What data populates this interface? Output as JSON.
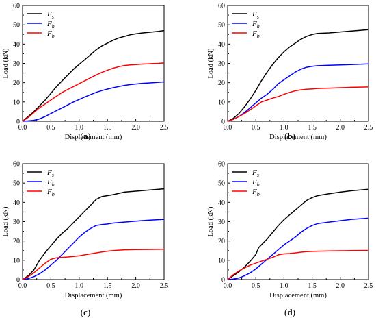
{
  "chart_data": [
    {
      "type": "line",
      "panel_label": "(a)",
      "xlabel": "Displacement (mm)",
      "ylabel": "Load (kN)",
      "xlim": [
        0,
        2.5
      ],
      "ylim": [
        0,
        60
      ],
      "xticks": [
        "0.0",
        "0.5",
        "1.0",
        "1.5",
        "2.0",
        "2.5"
      ],
      "yticks": [
        "0",
        "10",
        "20",
        "30",
        "40",
        "50",
        "60"
      ],
      "legend_position": "top-left",
      "series": [
        {
          "name": "Fs",
          "name_main": "F",
          "name_sub": "s",
          "color": "#000000",
          "x": [
            0,
            0.1,
            0.2,
            0.3,
            0.4,
            0.5,
            0.6,
            0.7,
            0.8,
            0.9,
            1.0,
            1.1,
            1.2,
            1.3,
            1.4,
            1.5,
            1.6,
            1.7,
            1.8,
            1.9,
            2.0,
            2.1,
            2.2,
            2.3,
            2.4,
            2.5
          ],
          "y": [
            0,
            2.5,
            5,
            8,
            11,
            14.5,
            18,
            21,
            24,
            27,
            29.5,
            32,
            34.5,
            37,
            39,
            40.5,
            42,
            43.2,
            44,
            44.8,
            45.3,
            45.7,
            46,
            46.3,
            46.6,
            47
          ]
        },
        {
          "name": "Fh",
          "name_main": "F",
          "name_sub": "h",
          "color": "#0000FF",
          "x": [
            0,
            0.1,
            0.2,
            0.3,
            0.4,
            0.5,
            0.6,
            0.7,
            0.8,
            0.9,
            1.0,
            1.1,
            1.2,
            1.3,
            1.4,
            1.5,
            1.6,
            1.7,
            1.8,
            1.9,
            2.0,
            2.1,
            2.2,
            2.3,
            2.4,
            2.5
          ],
          "y": [
            0,
            0.2,
            0.5,
            1.2,
            2.5,
            4,
            5.5,
            7,
            8.5,
            10,
            11.3,
            12.6,
            13.8,
            15,
            15.9,
            16.7,
            17.4,
            18,
            18.6,
            19,
            19.3,
            19.6,
            19.8,
            20,
            20.2,
            20.4
          ]
        },
        {
          "name": "Fb",
          "name_main": "F",
          "name_sub": "b",
          "color": "#FF0000",
          "x": [
            0,
            0.1,
            0.2,
            0.3,
            0.4,
            0.5,
            0.6,
            0.7,
            0.8,
            0.9,
            1.0,
            1.1,
            1.2,
            1.3,
            1.4,
            1.5,
            1.6,
            1.7,
            1.8,
            1.9,
            2.0,
            2.1,
            2.2,
            2.3,
            2.4,
            2.5
          ],
          "y": [
            0,
            2,
            4.5,
            7,
            9,
            11,
            13,
            15,
            16.5,
            18,
            19.5,
            21,
            22.5,
            24,
            25.3,
            26.5,
            27.5,
            28.3,
            28.9,
            29.2,
            29.4,
            29.6,
            29.7,
            29.9,
            30,
            30.2
          ]
        }
      ]
    },
    {
      "type": "line",
      "panel_label": "(b)",
      "xlabel": "Displacement (mm)",
      "ylabel": "Load (kN)",
      "xlim": [
        0,
        2.5
      ],
      "ylim": [
        0,
        60
      ],
      "xticks": [
        "0.0",
        "0.5",
        "1.0",
        "1.5",
        "2.0",
        "2.5"
      ],
      "yticks": [
        "0",
        "10",
        "20",
        "30",
        "40",
        "50",
        "60"
      ],
      "legend_position": "top-left",
      "series": [
        {
          "name": "Fs",
          "name_main": "F",
          "name_sub": "s",
          "color": "#000000",
          "x": [
            0,
            0.1,
            0.2,
            0.3,
            0.4,
            0.5,
            0.6,
            0.7,
            0.8,
            0.9,
            1.0,
            1.1,
            1.2,
            1.3,
            1.4,
            1.5,
            1.6,
            1.8,
            2.0,
            2.2,
            2.5
          ],
          "y": [
            0,
            1.5,
            4,
            7.5,
            11.5,
            16,
            21,
            25.5,
            29.5,
            33,
            36,
            38.5,
            40.5,
            42.5,
            44,
            45,
            45.5,
            45.8,
            46.3,
            46.8,
            47.5
          ]
        },
        {
          "name": "Fh",
          "name_main": "F",
          "name_sub": "h",
          "color": "#0000FF",
          "x": [
            0,
            0.1,
            0.2,
            0.3,
            0.4,
            0.5,
            0.6,
            0.7,
            0.8,
            0.9,
            1.0,
            1.1,
            1.2,
            1.3,
            1.4,
            1.5,
            1.6,
            1.8,
            2.0,
            2.2,
            2.5
          ],
          "y": [
            0,
            1,
            2.5,
            4.5,
            7,
            9.5,
            12,
            14,
            16.5,
            19.5,
            21.5,
            23.5,
            25.5,
            27,
            28,
            28.5,
            28.8,
            29,
            29.2,
            29.4,
            29.7
          ]
        },
        {
          "name": "Fb",
          "name_main": "F",
          "name_sub": "b",
          "color": "#FF0000",
          "x": [
            0,
            0.1,
            0.2,
            0.3,
            0.4,
            0.5,
            0.6,
            0.7,
            0.8,
            0.9,
            1.0,
            1.1,
            1.2,
            1.3,
            1.4,
            1.5,
            1.6,
            1.8,
            2.0,
            2.2,
            2.5
          ],
          "y": [
            0,
            1,
            2.5,
            4,
            6,
            8,
            10,
            11,
            12,
            12.8,
            14,
            15,
            15.8,
            16.3,
            16.6,
            16.8,
            17,
            17.2,
            17.4,
            17.6,
            17.8
          ]
        }
      ]
    },
    {
      "type": "line",
      "panel_label": "(c)",
      "xlabel": "Displacement (mm)",
      "ylabel": "Load (kN)",
      "xlim": [
        0,
        2.5
      ],
      "ylim": [
        0,
        60
      ],
      "xticks": [
        "0.0",
        "0.5",
        "1.0",
        "1.5",
        "2.0",
        "2.5"
      ],
      "yticks": [
        "0",
        "10",
        "20",
        "30",
        "40",
        "50",
        "60"
      ],
      "legend_position": "top-left",
      "series": [
        {
          "name": "Fs",
          "name_main": "F",
          "name_sub": "s",
          "color": "#000000",
          "x": [
            0,
            0.1,
            0.2,
            0.3,
            0.4,
            0.5,
            0.6,
            0.7,
            0.8,
            0.9,
            1.0,
            1.1,
            1.2,
            1.3,
            1.4,
            1.5,
            1.6,
            1.8,
            2.0,
            2.2,
            2.5
          ],
          "y": [
            0,
            2,
            5,
            10,
            14,
            17.5,
            21,
            24,
            26.5,
            29.5,
            32.5,
            35.5,
            38.5,
            41.5,
            43,
            43.5,
            44,
            45.3,
            45.8,
            46.3,
            47
          ]
        },
        {
          "name": "Fh",
          "name_main": "F",
          "name_sub": "h",
          "color": "#0000FF",
          "x": [
            0,
            0.1,
            0.2,
            0.3,
            0.4,
            0.5,
            0.6,
            0.7,
            0.8,
            0.9,
            1.0,
            1.1,
            1.2,
            1.3,
            1.4,
            1.5,
            1.6,
            1.8,
            2.0,
            2.2,
            2.5
          ],
          "y": [
            0,
            0.5,
            1.5,
            3,
            5,
            7.5,
            10,
            13,
            16,
            19,
            22,
            24.5,
            26.5,
            28,
            28.5,
            28.8,
            29.3,
            29.8,
            30.3,
            30.7,
            31.2
          ]
        },
        {
          "name": "Fb",
          "name_main": "F",
          "name_sub": "b",
          "color": "#FF0000",
          "x": [
            0,
            0.1,
            0.2,
            0.3,
            0.4,
            0.5,
            0.6,
            0.7,
            0.8,
            0.9,
            1.0,
            1.1,
            1.2,
            1.3,
            1.4,
            1.5,
            1.6,
            1.8,
            2.0,
            2.2,
            2.5
          ],
          "y": [
            0,
            1.5,
            3.5,
            6,
            8.5,
            10.5,
            11.3,
            11.5,
            11.7,
            12,
            12.3,
            12.8,
            13.3,
            13.8,
            14.3,
            14.7,
            15,
            15.4,
            15.5,
            15.6,
            15.7
          ]
        }
      ]
    },
    {
      "type": "line",
      "panel_label": "(d)",
      "xlabel": "Displacement (mm)",
      "ylabel": "Load (kN)",
      "xlim": [
        0,
        2.5
      ],
      "ylim": [
        0,
        60
      ],
      "xticks": [
        "0.0",
        "0.5",
        "1.0",
        "1.5",
        "2.0",
        "2.5"
      ],
      "yticks": [
        "0",
        "10",
        "20",
        "30",
        "40",
        "50",
        "60"
      ],
      "legend_position": "top-left",
      "series": [
        {
          "name": "Fs",
          "name_main": "F",
          "name_sub": "s",
          "color": "#000000",
          "x": [
            0,
            0.1,
            0.2,
            0.3,
            0.4,
            0.5,
            0.55,
            0.6,
            0.7,
            0.8,
            0.9,
            1.0,
            1.1,
            1.2,
            1.3,
            1.4,
            1.5,
            1.6,
            1.8,
            2.0,
            2.2,
            2.5
          ],
          "y": [
            0,
            2,
            4,
            6.5,
            9.5,
            13,
            16.5,
            18,
            21,
            24.5,
            28,
            31,
            33.5,
            36,
            38.5,
            41,
            42.5,
            43.5,
            44.5,
            45.3,
            46,
            46.8
          ]
        },
        {
          "name": "Fh",
          "name_main": "F",
          "name_sub": "h",
          "color": "#0000FF",
          "x": [
            0,
            0.1,
            0.2,
            0.3,
            0.4,
            0.5,
            0.6,
            0.7,
            0.8,
            0.9,
            1.0,
            1.1,
            1.2,
            1.3,
            1.4,
            1.5,
            1.6,
            1.8,
            2.0,
            2.2,
            2.5
          ],
          "y": [
            0,
            0.3,
            0.8,
            2,
            3.5,
            5.5,
            8,
            10.5,
            13,
            15.5,
            18,
            20,
            22,
            24.5,
            26.5,
            28,
            29,
            29.8,
            30.5,
            31.2,
            31.8
          ]
        },
        {
          "name": "Fb",
          "name_main": "F",
          "name_sub": "b",
          "color": "#FF0000",
          "x": [
            0,
            0.1,
            0.2,
            0.3,
            0.4,
            0.5,
            0.6,
            0.7,
            0.8,
            0.9,
            1.0,
            1.1,
            1.2,
            1.3,
            1.4,
            1.5,
            1.6,
            1.8,
            2.0,
            2.2,
            2.5
          ],
          "y": [
            0,
            2.5,
            4.5,
            6,
            7.5,
            8.5,
            9.5,
            10.5,
            11.5,
            12.8,
            13.3,
            13.5,
            13.8,
            14.2,
            14.5,
            14.6,
            14.7,
            14.8,
            14.9,
            15,
            15.1
          ]
        }
      ]
    }
  ]
}
